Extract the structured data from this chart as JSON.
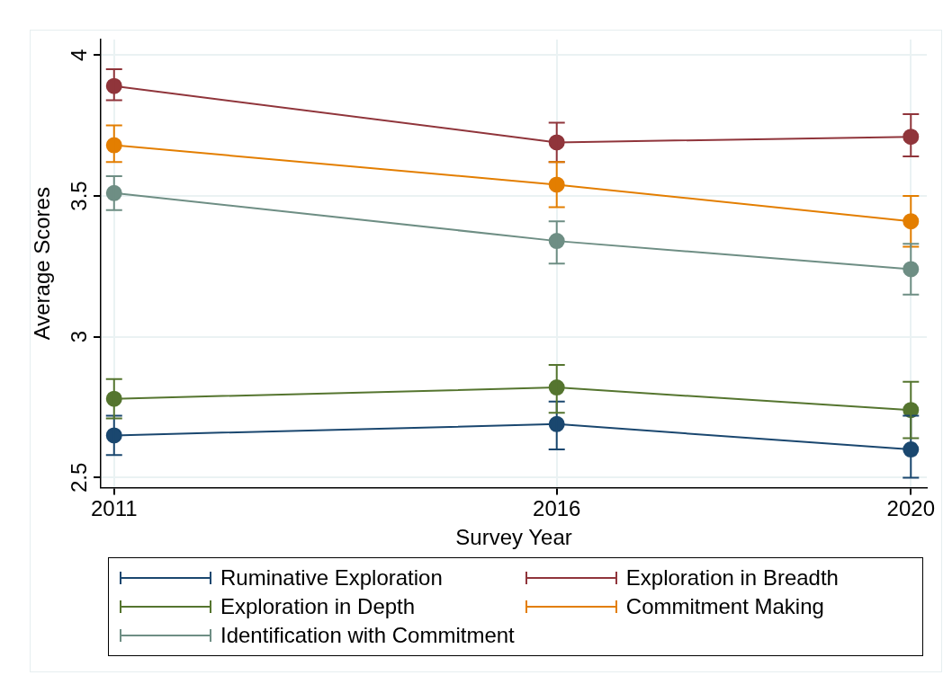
{
  "chart_data": {
    "type": "line",
    "xlabel": "Survey Year",
    "ylabel": "Average Scores",
    "x": [
      2011,
      2016,
      2020
    ],
    "xlim": [
      2010.85,
      2020.18
    ],
    "xticks": [
      2011,
      2016,
      2020
    ],
    "ylim": [
      2.465,
      4.055
    ],
    "yticks": [
      2.5,
      3,
      3.5,
      4
    ],
    "grid": true,
    "legend": "bottom",
    "marker": "circle",
    "line_style": "solid",
    "series": [
      {
        "name": "Ruminative Exploration",
        "color": "#1a476f",
        "values": [
          2.65,
          2.69,
          2.6
        ],
        "errors": [
          [
            2.58,
            2.72
          ],
          [
            2.6,
            2.77
          ],
          [
            2.5,
            2.72
          ]
        ]
      },
      {
        "name": "Exploration in Breadth",
        "color": "#90353b",
        "values": [
          3.89,
          3.69,
          3.71
        ],
        "errors": [
          [
            3.84,
            3.95
          ],
          [
            3.62,
            3.76
          ],
          [
            3.64,
            3.79
          ]
        ]
      },
      {
        "name": "Exploration in Depth",
        "color": "#55752f",
        "values": [
          2.78,
          2.82,
          2.74
        ],
        "errors": [
          [
            2.71,
            2.85
          ],
          [
            2.73,
            2.9
          ],
          [
            2.64,
            2.84
          ]
        ]
      },
      {
        "name": "Commitment Making",
        "color": "#e37e00",
        "values": [
          3.68,
          3.54,
          3.41
        ],
        "errors": [
          [
            3.62,
            3.75
          ],
          [
            3.46,
            3.62
          ],
          [
            3.32,
            3.5
          ]
        ]
      },
      {
        "name": "Identification with Commitment",
        "color": "#6e8e84",
        "values": [
          3.51,
          3.34,
          3.24
        ],
        "errors": [
          [
            3.45,
            3.57
          ],
          [
            3.26,
            3.41
          ],
          [
            3.15,
            3.33
          ]
        ]
      }
    ]
  }
}
